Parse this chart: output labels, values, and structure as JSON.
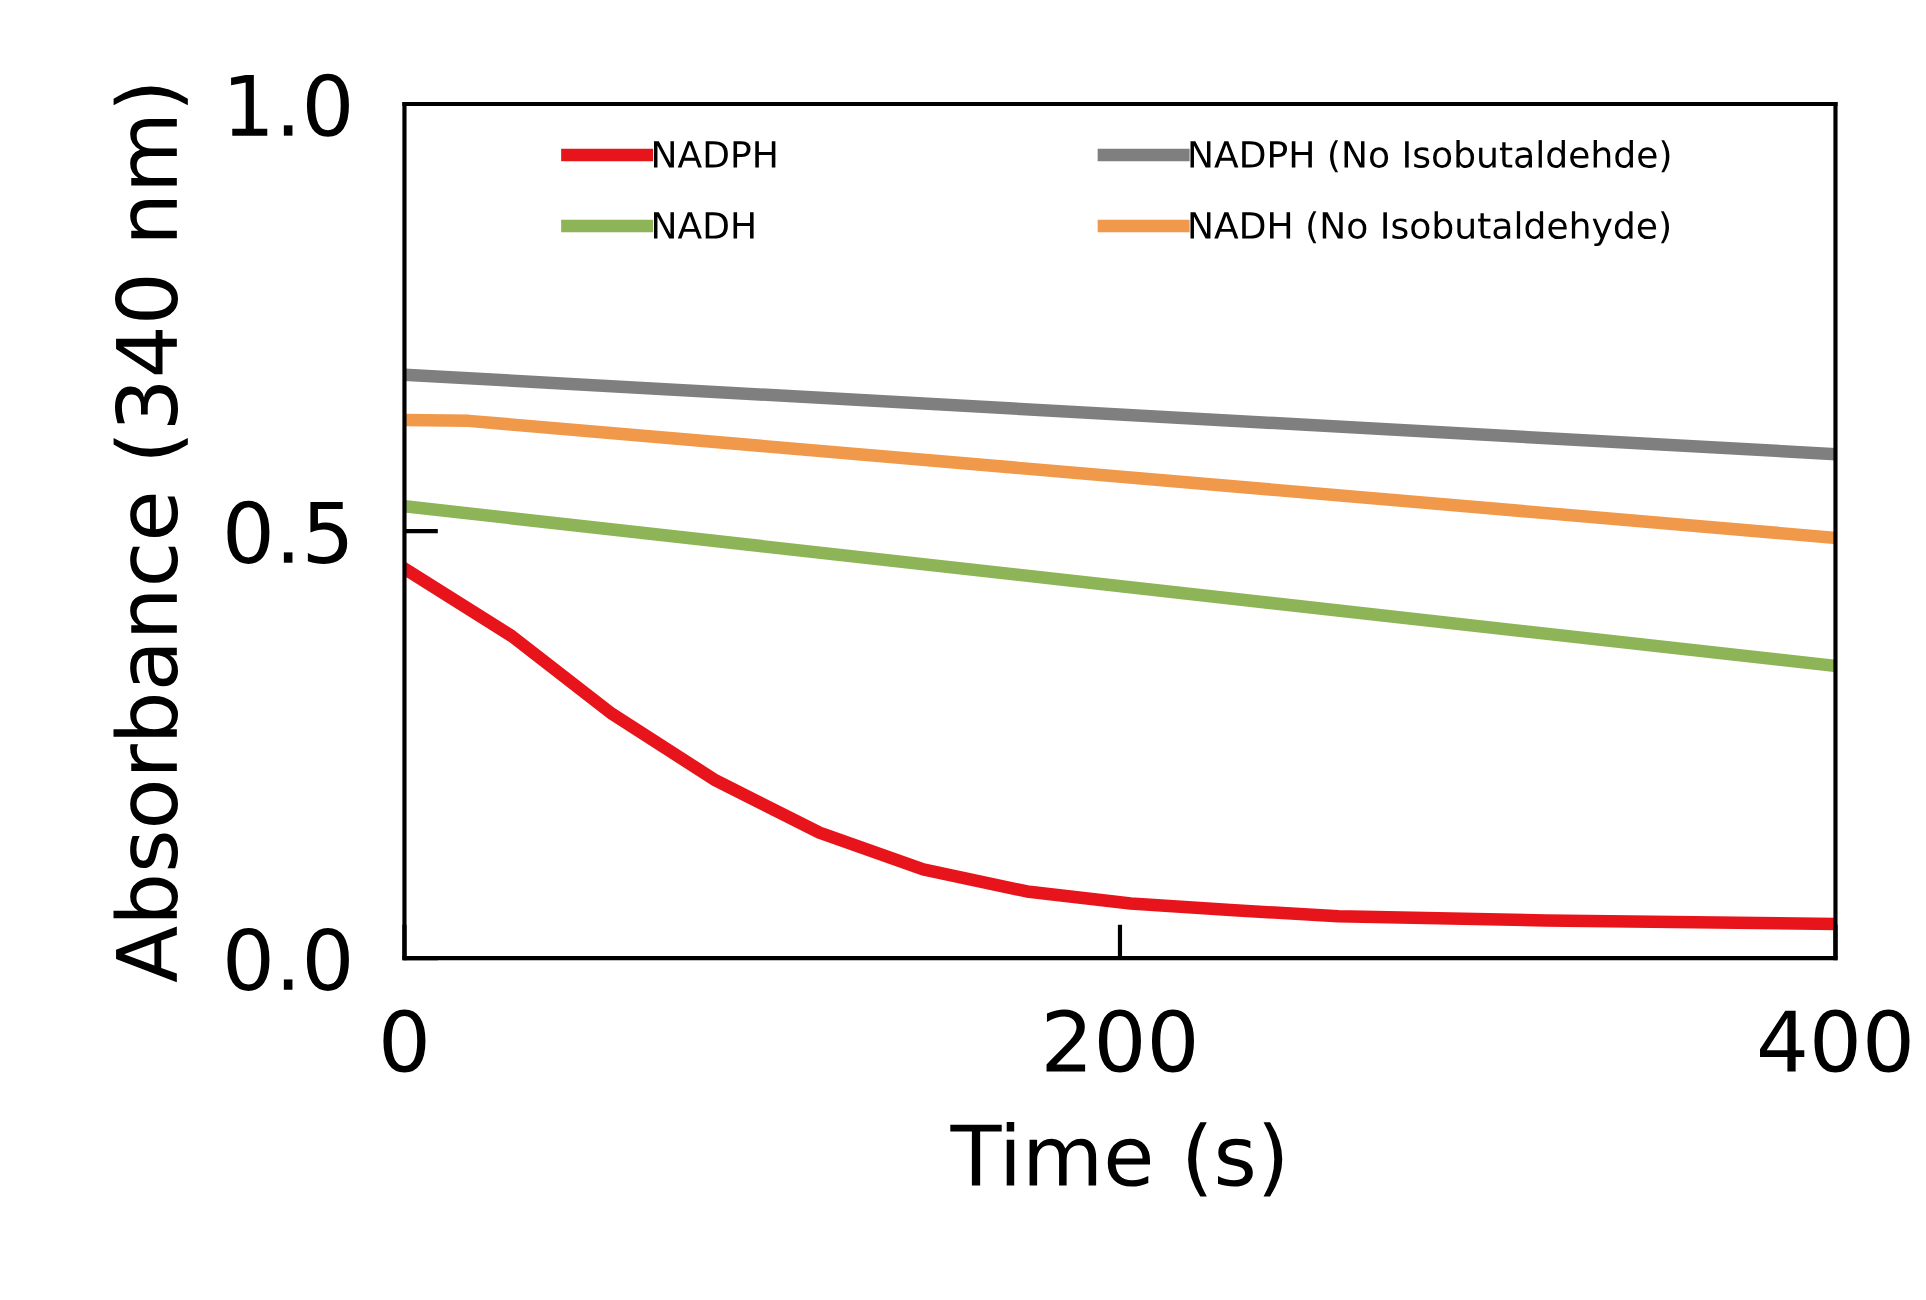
{
  "chart_data": {
    "type": "line",
    "xlabel": "Time (s)",
    "ylabel": "Absorbance (340 nm)",
    "xlim": [
      0,
      400
    ],
    "xticks": [
      0,
      200,
      400
    ],
    "ylim": [
      0,
      1.0
    ],
    "yticks": [
      {
        "value": 0,
        "label": "0.0"
      },
      {
        "value": 0.5,
        "label": "0.5"
      },
      {
        "value": 1.0,
        "label": "1.0"
      }
    ],
    "grid": false,
    "legend": "top",
    "marker": "none",
    "line_style": "solid",
    "series": [
      {
        "name": "NADPH",
        "color": "#e8141b",
        "x": [
          0,
          30,
          58,
          87,
          116,
          145,
          174,
          203,
          232,
          261,
          319,
          400
        ],
        "values": [
          0.456,
          0.377,
          0.286,
          0.208,
          0.147,
          0.104,
          0.078,
          0.064,
          0.056,
          0.049,
          0.044,
          0.04
        ]
      },
      {
        "name": "NADPH (No Isobutaldehde)",
        "color": "#7f7f7f",
        "x": [
          0,
          400
        ],
        "values": [
          0.683,
          0.59
        ]
      },
      {
        "name": "NADH",
        "color": "#8db456",
        "x": [
          0,
          400
        ],
        "values": [
          0.529,
          0.342
        ]
      },
      {
        "name": "NADH (No Isobutaldehyde)",
        "color": "#f0994a",
        "x": [
          0,
          18,
          400
        ],
        "values": [
          0.63,
          0.629,
          0.492
        ]
      }
    ]
  }
}
